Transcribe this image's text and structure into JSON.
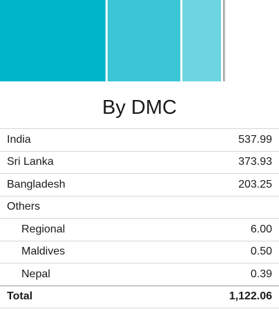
{
  "chart_data": {
    "type": "bar",
    "orientation": "stacked-horizontal",
    "categories": [
      "India",
      "Sri Lanka",
      "Bangladesh",
      "Regional",
      "Maldives",
      "Nepal"
    ],
    "values": [
      537.99,
      373.93,
      203.25,
      6.0,
      0.5,
      0.39
    ],
    "colors": [
      "#00b6cb",
      "#3ac6d5",
      "#6cd5e1",
      "#555555",
      "#555555",
      "#555555"
    ],
    "total": 1122.06,
    "title": "By DMC",
    "xlabel": "",
    "ylabel": "",
    "grid": false,
    "legend": "none"
  },
  "table": {
    "rows": [
      {
        "label": "India",
        "value": "537.99",
        "indent": false
      },
      {
        "label": "Sri Lanka",
        "value": "373.93",
        "indent": false
      },
      {
        "label": "Bangladesh",
        "value": "203.25",
        "indent": false
      },
      {
        "label": "Others",
        "value": "",
        "indent": false
      },
      {
        "label": "Regional",
        "value": "6.00",
        "indent": true
      },
      {
        "label": "Maldives",
        "value": "0.50",
        "indent": true
      },
      {
        "label": "Nepal",
        "value": "0.39",
        "indent": true
      }
    ],
    "total": {
      "label": "Total",
      "value": "1,122.06"
    }
  }
}
